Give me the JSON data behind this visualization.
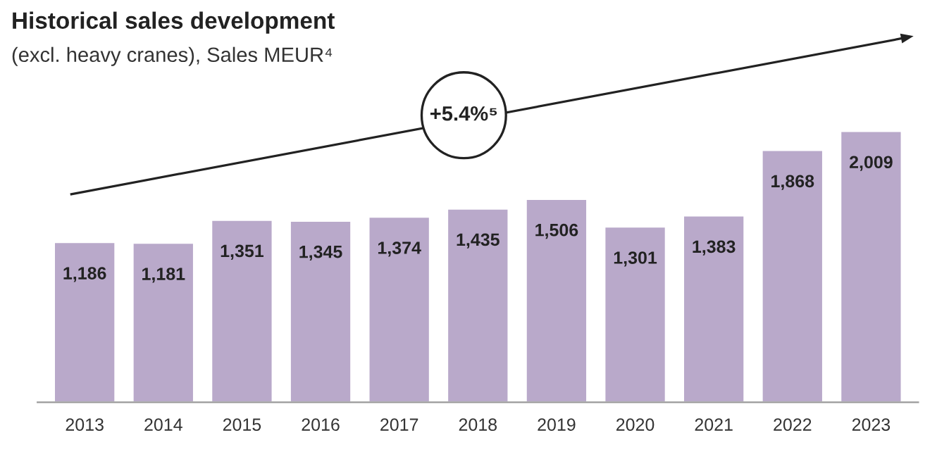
{
  "chart_data": {
    "type": "bar",
    "title": "Historical sales development",
    "subtitle": "(excl. heavy cranes), Sales MEUR⁴",
    "categories": [
      "2013",
      "2014",
      "2015",
      "2016",
      "2017",
      "2018",
      "2019",
      "2020",
      "2021",
      "2022",
      "2023"
    ],
    "values": [
      1186,
      1181,
      1351,
      1345,
      1374,
      1435,
      1506,
      1301,
      1383,
      1868,
      2009
    ],
    "value_labels": [
      "1,186",
      "1,181",
      "1,351",
      "1,345",
      "1,374",
      "1,435",
      "1,506",
      "1,301",
      "1,383",
      "1,868",
      "2,009"
    ],
    "color": "#b9a9ca",
    "grid": false,
    "legend": false,
    "annotations": [
      "+5.4%⁵"
    ]
  }
}
